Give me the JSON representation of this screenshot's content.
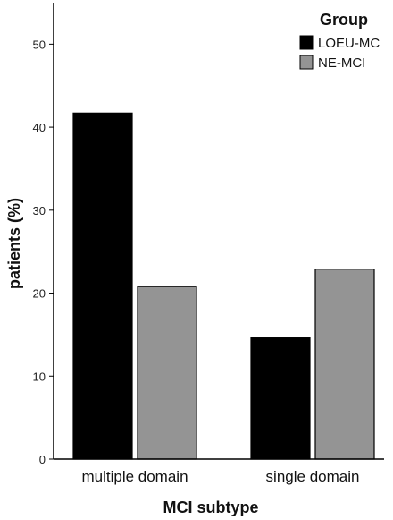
{
  "chart_data": {
    "type": "bar",
    "categories": [
      "multiple domain",
      "single domain"
    ],
    "series": [
      {
        "name": "LOEU-MC",
        "values": [
          41.7,
          14.6
        ],
        "color": "#000000"
      },
      {
        "name": "NE-MCI",
        "values": [
          20.8,
          22.9
        ],
        "color": "#949494"
      }
    ],
    "xlabel": "MCI subtype",
    "ylabel": "patients (%)",
    "ylim": [
      0,
      55
    ],
    "yticks": [
      0,
      10,
      20,
      30,
      40,
      50
    ],
    "legend": {
      "title": "Group",
      "position": "top-right"
    },
    "grid": false
  }
}
